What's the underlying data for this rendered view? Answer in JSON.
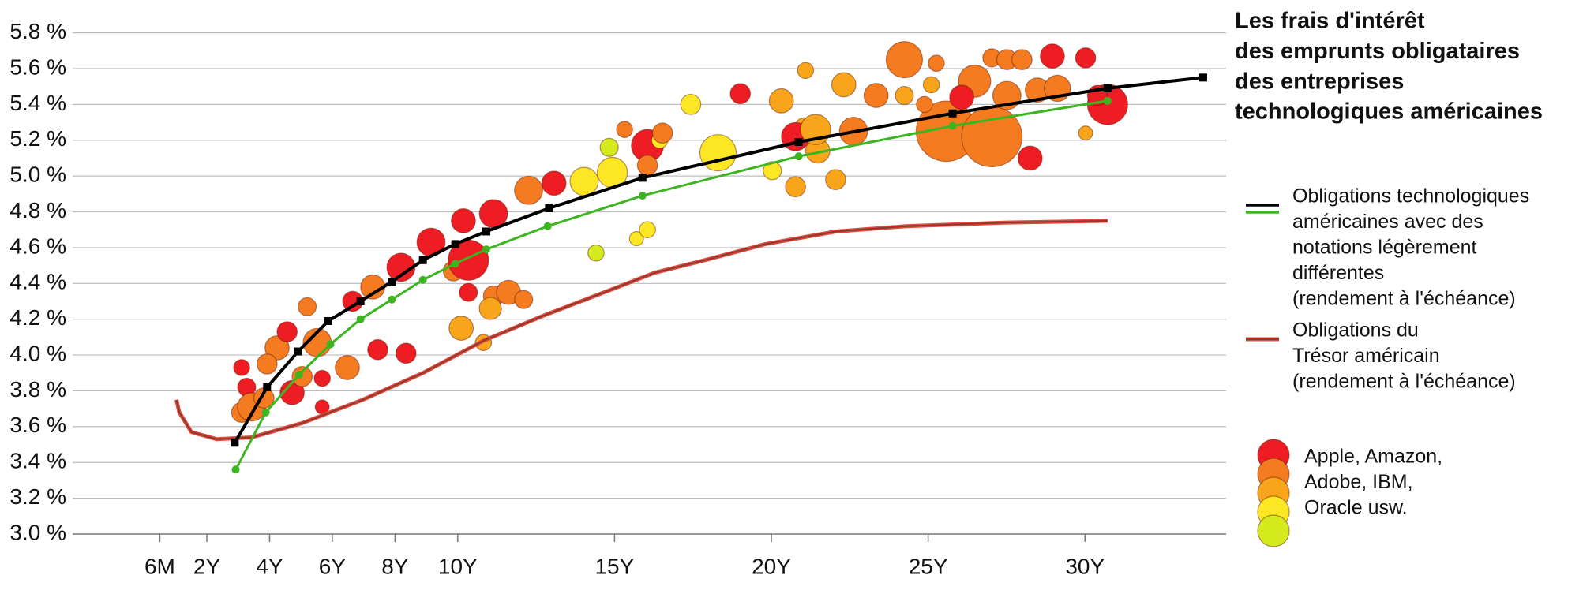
{
  "chart_data": {
    "type": "bubble",
    "title": [
      "Les frais d'intérêt",
      "des emprunts obligataires",
      "des entreprises",
      "technologiques américaines"
    ],
    "xlim": [
      -2.28,
      34.5
    ],
    "ylim": [
      3.0,
      5.8
    ],
    "xticks": [
      {
        "value": 0.5,
        "label": "6M"
      },
      {
        "value": 2,
        "label": "2Y"
      },
      {
        "value": 4,
        "label": "4Y"
      },
      {
        "value": 6,
        "label": "6Y"
      },
      {
        "value": 8,
        "label": "8Y"
      },
      {
        "value": 10,
        "label": "10Y"
      },
      {
        "value": 15,
        "label": "15Y"
      },
      {
        "value": 20,
        "label": "20Y"
      },
      {
        "value": 25,
        "label": "25Y"
      },
      {
        "value": 30,
        "label": "30Y"
      }
    ],
    "yticks": [
      {
        "value": 3.0,
        "label": "3.0 %"
      },
      {
        "value": 3.2,
        "label": "3.2 %"
      },
      {
        "value": 3.4,
        "label": "3.4 %"
      },
      {
        "value": 3.6,
        "label": "3.6 %"
      },
      {
        "value": 3.8,
        "label": "3.8 %"
      },
      {
        "value": 4.0,
        "label": "4.0 %"
      },
      {
        "value": 4.2,
        "label": "4.2 %"
      },
      {
        "value": 4.4,
        "label": "4.4 %"
      },
      {
        "value": 4.6,
        "label": "4.6 %"
      },
      {
        "value": 4.8,
        "label": "4.8 %"
      },
      {
        "value": 5.0,
        "label": "5.0 %"
      },
      {
        "value": 5.2,
        "label": "5.2 %"
      },
      {
        "value": 5.4,
        "label": "5.4 %"
      },
      {
        "value": 5.6,
        "label": "5.6 %"
      },
      {
        "value": 5.8,
        "label": "5.8 %"
      }
    ],
    "grid": true,
    "series": [
      {
        "name": [
          "Obligations technologiques",
          "américaines avec des",
          "notations légèrement",
          "différentes",
          "(rendement à l'échéance)"
        ],
        "color": "#000000",
        "marker": "square",
        "x": [
          2.89,
          3.92,
          4.91,
          5.87,
          6.9,
          7.9,
          8.89,
          9.92,
          10.91,
          12.91,
          15.89,
          20.87,
          25.78,
          30.72,
          33.77
        ],
        "values": [
          3.51,
          3.82,
          4.02,
          4.19,
          4.3,
          4.41,
          4.53,
          4.62,
          4.69,
          4.82,
          4.99,
          5.19,
          5.35,
          5.49,
          5.55
        ]
      },
      {
        "color": "#3cb521",
        "marker": "circle",
        "x": [
          2.92,
          3.88,
          4.94,
          5.94,
          6.9,
          7.9,
          8.89,
          9.92,
          10.91,
          12.87,
          15.89,
          20.87,
          25.78,
          30.72
        ],
        "values": [
          3.36,
          3.68,
          3.89,
          4.06,
          4.2,
          4.31,
          4.42,
          4.51,
          4.59,
          4.72,
          4.89,
          5.11,
          5.28,
          5.42
        ]
      },
      {
        "name": [
          "Obligations du",
          "Trésor américain",
          "(rendement à l'échéance)"
        ],
        "color": "#8b3a2f",
        "outline": "#e4493b",
        "x": [
          1.03,
          1.12,
          1.51,
          2.31,
          3.43,
          5.04,
          6.97,
          8.89,
          10.82,
          12.74,
          14.67,
          16.28,
          17.88,
          19.81,
          22.05,
          24.3,
          27.51,
          30.72
        ],
        "values": [
          3.75,
          3.68,
          3.57,
          3.53,
          3.54,
          3.62,
          3.75,
          3.9,
          4.08,
          4.22,
          4.35,
          4.46,
          4.53,
          4.62,
          4.69,
          4.72,
          4.74,
          4.75
        ]
      }
    ],
    "bubbles": {
      "legend": [
        "Apple, Amazon,",
        "Adobe, IBM,",
        "Oracle usw."
      ],
      "legend_colors": [
        "#ee1d23",
        "#f47b20",
        "#f9a51b",
        "#fde725",
        "#d4ea1c"
      ],
      "x": [
        25.58,
        27.03,
        3.11,
        3.27,
        3.11,
        3.43,
        3.82,
        4.24,
        4.56,
        4.72,
        5.2,
        5.52,
        5.68,
        6.48,
        5.68,
        6.65,
        7.29,
        7.45,
        8.35,
        8.19,
        9.15,
        9.86,
        10.34,
        10.34,
        11.14,
        11.62,
        12.1,
        10.18,
        11.14,
        12.26,
        13.07,
        10.11,
        11.04,
        10.82,
        14.03,
        14.93,
        14.41,
        14.83,
        15.32,
        16.05,
        16.44,
        16.53,
        16.05,
        15.7,
        16.05,
        17.43,
        18.3,
        19.01,
        20.32,
        21.03,
        20.03,
        20.77,
        21.09,
        20.77,
        21.48,
        22.05,
        22.31,
        21.41,
        22.62,
        23.34,
        24.24,
        24.24,
        25.26,
        25.1,
        24.88,
        26.48,
        26.07,
        27.03,
        27.51,
        27.99,
        27.51,
        28.48,
        28.96,
        28.25,
        29.12,
        30.02,
        30.02,
        30.72,
        30.4,
        5.04,
        3.92
      ],
      "values": [
        5.25,
        5.22,
        3.93,
        3.82,
        3.68,
        3.71,
        3.76,
        4.04,
        4.13,
        3.79,
        4.27,
        4.07,
        3.87,
        3.93,
        3.71,
        4.3,
        4.38,
        4.03,
        4.01,
        4.49,
        4.63,
        4.47,
        4.53,
        4.35,
        4.33,
        4.35,
        4.31,
        4.75,
        4.79,
        4.92,
        4.96,
        4.15,
        4.26,
        4.07,
        4.97,
        5.02,
        4.57,
        5.16,
        5.26,
        5.17,
        5.2,
        5.24,
        5.06,
        4.65,
        4.7,
        5.4,
        5.13,
        5.46,
        5.42,
        5.28,
        5.03,
        4.94,
        5.59,
        5.22,
        5.14,
        4.98,
        5.51,
        5.26,
        5.25,
        5.45,
        5.65,
        5.45,
        5.63,
        5.51,
        5.4,
        5.53,
        5.44,
        5.66,
        5.65,
        5.65,
        5.45,
        5.48,
        5.67,
        5.1,
        5.49,
        5.66,
        5.24,
        5.4,
        5.45,
        3.88,
        3.95
      ],
      "sizes": [
        30,
        30,
        8,
        9,
        10,
        14,
        10,
        12,
        10,
        12,
        9,
        14,
        8,
        12,
        7,
        10,
        12,
        10,
        10,
        14,
        14,
        10,
        20,
        9,
        10,
        12,
        9,
        12,
        14,
        14,
        12,
        12,
        11,
        8,
        14,
        15,
        8,
        9,
        8,
        16,
        8,
        10,
        10,
        7,
        8,
        10,
        18,
        10,
        12,
        8,
        9,
        10,
        8,
        14,
        12,
        10,
        12,
        15,
        14,
        12,
        18,
        9,
        8,
        8,
        8,
        16,
        12,
        9,
        10,
        10,
        14,
        12,
        12,
        12,
        13,
        10,
        7,
        20,
        10,
        10,
        10
      ],
      "colors": [
        "#f47b20",
        "#f47b20",
        "#ee1d23",
        "#ee1d23",
        "#f47b20",
        "#f47b20",
        "#f47b20",
        "#f47b20",
        "#ee1d23",
        "#ee1d23",
        "#f47b20",
        "#f47b20",
        "#ee1d23",
        "#f47b20",
        "#ee1d23",
        "#ee1d23",
        "#f47b20",
        "#ee1d23",
        "#ee1d23",
        "#ee1d23",
        "#ee1d23",
        "#f47b20",
        "#ee1d23",
        "#ee1d23",
        "#f47b20",
        "#f47b20",
        "#f47b20",
        "#ee1d23",
        "#ee1d23",
        "#f47b20",
        "#ee1d23",
        "#f9a51b",
        "#f9a51b",
        "#f9a51b",
        "#fde725",
        "#fde725",
        "#d4ea1c",
        "#d4ea1c",
        "#f47b20",
        "#ee1d23",
        "#fde725",
        "#f47b20",
        "#f47b20",
        "#fde725",
        "#fde725",
        "#fde725",
        "#fde725",
        "#ee1d23",
        "#f9a51b",
        "#f9a51b",
        "#fde725",
        "#f9a51b",
        "#f9a51b",
        "#ee1d23",
        "#f9a51b",
        "#f9a51b",
        "#f9a51b",
        "#f9a51b",
        "#f47b20",
        "#f47b20",
        "#f47b20",
        "#f9a51b",
        "#f47b20",
        "#f9a51b",
        "#f47b20",
        "#f47b20",
        "#ee1d23",
        "#f47b20",
        "#f47b20",
        "#f47b20",
        "#f47b20",
        "#f47b20",
        "#ee1d23",
        "#ee1d23",
        "#f47b20",
        "#ee1d23",
        "#f9a51b",
        "#ee1d23",
        "#ee1d23",
        "#f47b20",
        "#f47b20"
      ]
    }
  }
}
